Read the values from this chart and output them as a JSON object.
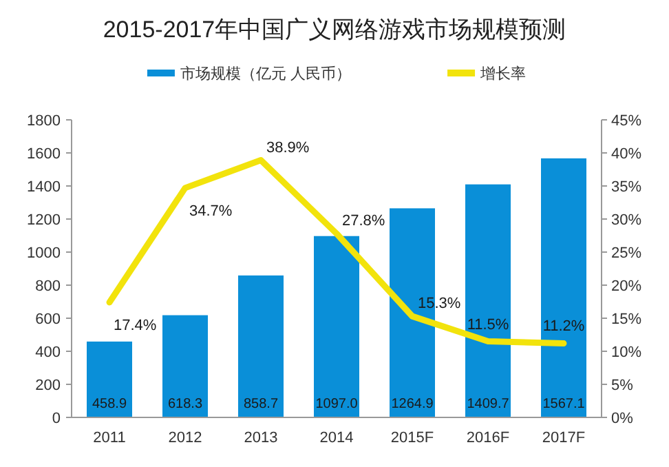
{
  "chart_data": {
    "type": "bar",
    "title": "2015-2017年中国广义网络游戏市场规模预测",
    "categories": [
      "2011",
      "2012",
      "2013",
      "2014",
      "2015F",
      "2016F",
      "2017F"
    ],
    "series": [
      {
        "name": "市场规模（亿元 人民币）",
        "color": "#0a8fd8",
        "values": [
          458.9,
          618.3,
          858.7,
          1097.0,
          1264.9,
          1409.7,
          1567.1
        ],
        "value_labels": [
          "458.9",
          "618.3",
          "858.7",
          "1097.0",
          "1264.9",
          "1409.7",
          "1567.1"
        ]
      },
      {
        "name": "增长率",
        "type": "line",
        "axis": "y2",
        "color": "#f2e30c",
        "values": [
          17.4,
          34.7,
          38.9,
          27.8,
          15.3,
          11.5,
          11.2
        ],
        "value_labels": [
          "17.4%",
          "34.7%",
          "38.9%",
          "27.8%",
          "15.3%",
          "11.5%",
          "11.2%"
        ]
      }
    ],
    "ylim": [
      0,
      1800
    ],
    "yticks": [
      0,
      200,
      400,
      600,
      800,
      1000,
      1200,
      1400,
      1600,
      1800
    ],
    "y2lim": [
      0,
      45
    ],
    "y2ticks": [
      {
        "value": 0,
        "label": "0%"
      },
      {
        "value": 5,
        "label": "5%"
      },
      {
        "value": 10,
        "label": "10%"
      },
      {
        "value": 15,
        "label": "15%"
      },
      {
        "value": 20,
        "label": "20%"
      },
      {
        "value": 25,
        "label": "25%"
      },
      {
        "value": 30,
        "label": "30%"
      },
      {
        "value": 35,
        "label": "35%"
      },
      {
        "value": 40,
        "label": "40%"
      },
      {
        "value": 45,
        "label": "45%"
      }
    ],
    "legend": "top"
  }
}
